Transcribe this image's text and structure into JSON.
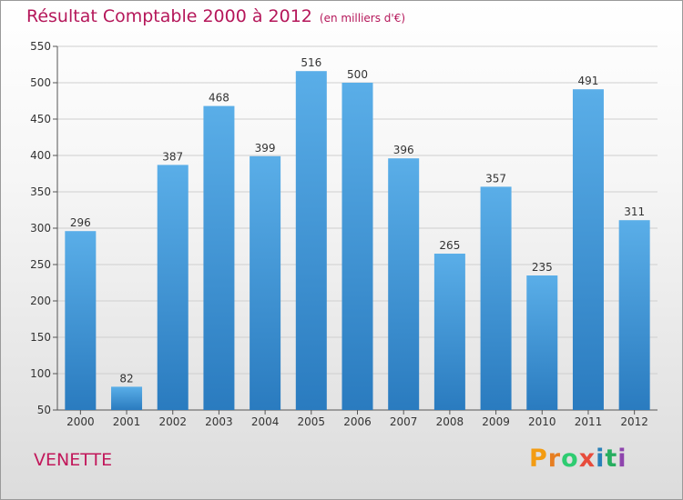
{
  "title": "Résultat Comptable 2000 à 2012",
  "subtitle": "(en milliers d'€)",
  "place": "VENETTE",
  "logo": {
    "letters": [
      "P",
      "r",
      "o",
      "x",
      "i",
      "t",
      "i"
    ],
    "colors": [
      "#f39c12",
      "#e67e22",
      "#2ecc71",
      "#e74c3c",
      "#2980b9",
      "#27ae60",
      "#8e44ad"
    ]
  },
  "colors": {
    "title": "#b5175a",
    "bar_top": "#5aaee8",
    "bar_bottom": "#2a7bbf",
    "grid": "#cfcfcf"
  },
  "chart_data": {
    "type": "bar",
    "title": "Résultat Comptable 2000 à 2012",
    "xlabel": "",
    "ylabel": "",
    "categories": [
      "2000",
      "2001",
      "2002",
      "2003",
      "2004",
      "2005",
      "2006",
      "2007",
      "2008",
      "2009",
      "2010",
      "2011",
      "2012"
    ],
    "values": [
      296,
      82,
      387,
      468,
      399,
      516,
      500,
      396,
      265,
      357,
      235,
      491,
      311
    ],
    "ylim": [
      50,
      550
    ],
    "yticks": [
      50,
      100,
      150,
      200,
      250,
      300,
      350,
      400,
      450,
      500,
      550
    ],
    "grid": true
  }
}
